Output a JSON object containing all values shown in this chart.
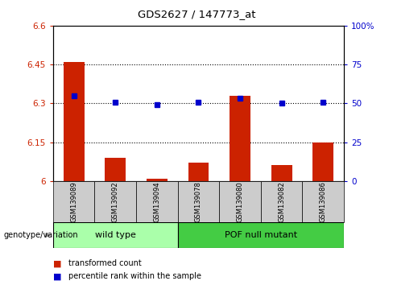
{
  "title": "GDS2627 / 147773_at",
  "samples": [
    "GSM139089",
    "GSM139092",
    "GSM139094",
    "GSM139078",
    "GSM139080",
    "GSM139082",
    "GSM139086"
  ],
  "red_values": [
    6.46,
    6.09,
    6.01,
    6.07,
    6.33,
    6.06,
    6.15
  ],
  "blue_values": [
    6.33,
    6.305,
    6.295,
    6.305,
    6.32,
    6.3,
    6.305
  ],
  "ylim_left": [
    6.0,
    6.6
  ],
  "ylim_right": [
    0,
    100
  ],
  "yticks_left": [
    6.0,
    6.15,
    6.3,
    6.45,
    6.6
  ],
  "yticks_right": [
    0,
    25,
    50,
    75,
    100
  ],
  "ytick_labels_left": [
    "6",
    "6.15",
    "6.3",
    "6.45",
    "6.6"
  ],
  "ytick_labels_right": [
    "0",
    "25",
    "50",
    "75",
    "100%"
  ],
  "hlines": [
    6.15,
    6.3,
    6.45
  ],
  "wild_type_label": "wild type",
  "pof_label": "POF null mutant",
  "genotype_label": "genotype/variation",
  "legend_red": "transformed count",
  "legend_blue": "percentile rank within the sample",
  "bar_color": "#cc2200",
  "dot_color": "#0000cc",
  "wild_bg": "#aaffaa",
  "pof_bg": "#44cc44",
  "sample_bg": "#cccccc",
  "bar_width": 0.5,
  "n_wild": 3,
  "n_pof": 4
}
